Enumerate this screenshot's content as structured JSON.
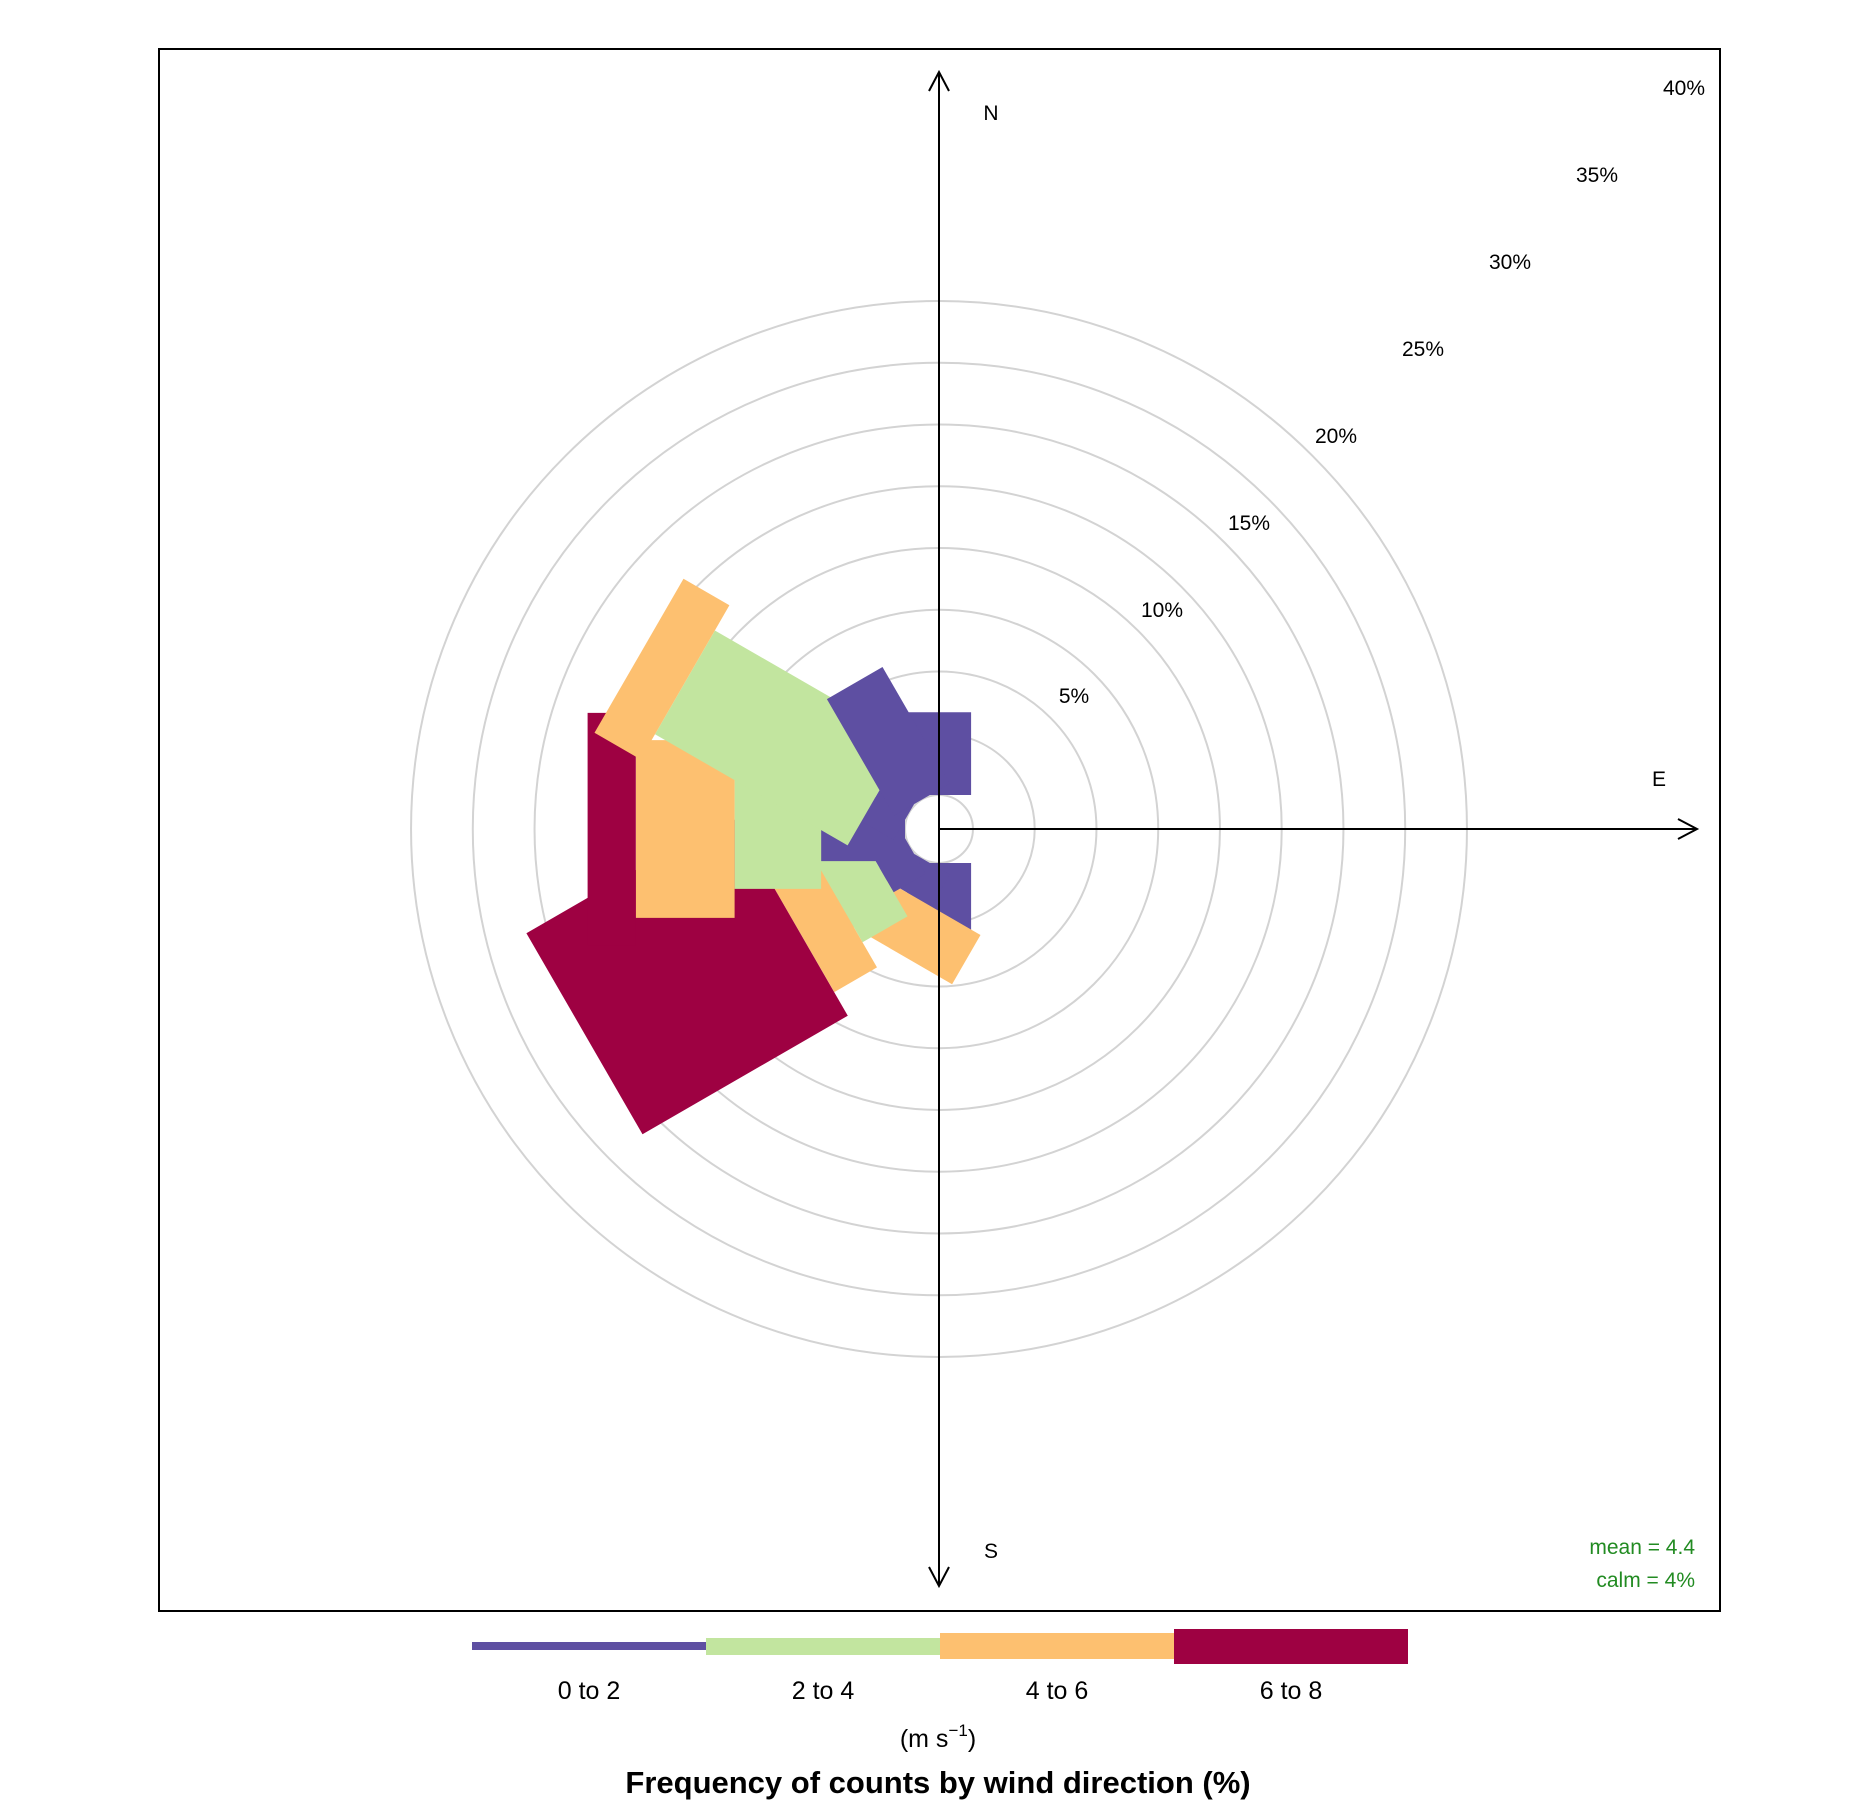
{
  "chart_data": {
    "type": "windrose",
    "title": "Frequency of counts by wind direction (%)",
    "units_text": "(m s",
    "units_superscript": "−1",
    "units_close": ")",
    "radial_unit": "%",
    "radial_ticks": [
      5,
      10,
      15,
      20,
      25,
      30,
      35,
      40
    ],
    "radial_tick_labels": [
      "5%",
      "10%",
      "15%",
      "20%",
      "25%",
      "30%",
      "35%",
      "40%"
    ],
    "radial_max": 40,
    "calm_radius_pct": 2.75,
    "compass": {
      "north": "N",
      "east": "E",
      "south": "S"
    },
    "stats": {
      "mean": "mean = 4.4",
      "calm": "calm = 4%"
    },
    "bins": [
      {
        "label": "0 to 2",
        "color": "#5e4fa2"
      },
      {
        "label": "2 to 4",
        "color": "#c2e59f"
      },
      {
        "label": "4 to 6",
        "color": "#fdc070"
      },
      {
        "label": "6 to 8",
        "color": "#9e0142"
      }
    ],
    "directions": [
      {
        "deg": 0,
        "cumulative": [
          6.7,
          6.7,
          6.7,
          6.7
        ]
      },
      {
        "deg": 180,
        "cumulative": [
          6.7,
          6.7,
          6.7,
          6.7
        ]
      },
      {
        "deg": 210,
        "cumulative": [
          3.0,
          3.0,
          7.6,
          7.6
        ]
      },
      {
        "deg": 240,
        "cumulative": [
          3.0,
          7.2,
          11.2,
          30.4
        ]
      },
      {
        "deg": 270,
        "cumulative": [
          6.8,
          13.8,
          21.8,
          25.7
        ]
      },
      {
        "deg": 300,
        "cumulative": [
          3.0,
          21.0,
          25.3,
          25.3
        ]
      },
      {
        "deg": 330,
        "cumulative": [
          10.9,
          10.9,
          10.9,
          10.9
        ]
      }
    ]
  }
}
